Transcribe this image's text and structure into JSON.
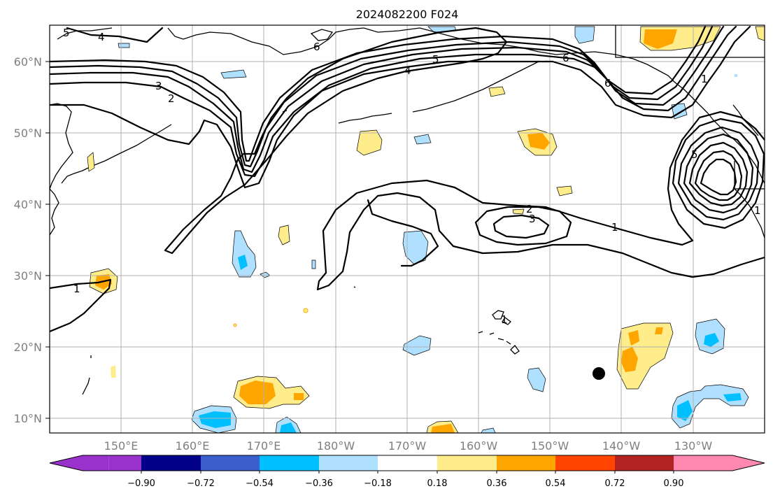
{
  "title": "2024082200 F024",
  "lat_labels": [
    "60°N",
    "50°N",
    "40°N",
    "30°N",
    "20°N",
    "10°N"
  ],
  "lon_labels": [
    "150°E",
    "160°E",
    "170°E",
    "180°W",
    "170°W",
    "160°W",
    "150°W",
    "140°W",
    "130°W"
  ],
  "colorbar": {
    "tick_labels": [
      "−0.90",
      "−0.72",
      "−0.54",
      "−0.36",
      "−0.18",
      "0.18",
      "0.36",
      "0.54",
      "0.72",
      "0.90"
    ],
    "colors": [
      "#9932cc",
      "#00008b",
      "#3a5fcd",
      "#00bfff",
      "#b0e0ff",
      "#ffffff",
      "#ffec8b",
      "#ffa500",
      "#ff4500",
      "#b22222",
      "#ff88b0"
    ]
  },
  "contour_labels": [
    "1",
    "2",
    "3",
    "4",
    "5",
    "6",
    "1",
    "2",
    "3",
    "1",
    "1",
    "6",
    "5",
    "1",
    "4",
    "5",
    "6"
  ],
  "marker": "filled-circle"
}
